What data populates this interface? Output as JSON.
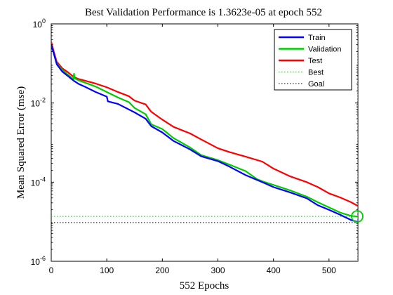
{
  "chart_data": {
    "type": "line",
    "title": "Best Validation Performance is 1.3623e-05 at epoch 552",
    "xlabel": "552 Epochs",
    "ylabel": "Mean Squared Error  (mse)",
    "xlim": [
      0,
      552
    ],
    "ylim": [
      1e-06,
      1
    ],
    "yscale": "log",
    "x_ticks": [
      "0",
      "100",
      "200",
      "300",
      "400",
      "500"
    ],
    "y_ticks": [
      {
        "base": "10",
        "exp": "0"
      },
      {
        "base": "10",
        "exp": "-2"
      },
      {
        "base": "10",
        "exp": "-4"
      },
      {
        "base": "10",
        "exp": "-6"
      }
    ],
    "grid": false,
    "legend_position": "top-right",
    "series": [
      {
        "name": "Train",
        "color": "#0000ff",
        "x": [
          0,
          5,
          10,
          20,
          30,
          40,
          50,
          60,
          80,
          100,
          102,
          120,
          150,
          170,
          180,
          200,
          220,
          250,
          270,
          300,
          320,
          350,
          380,
          400,
          430,
          460,
          480,
          500,
          520,
          540,
          552
        ],
        "y": [
          0.3,
          0.17,
          0.095,
          0.062,
          0.048,
          0.037,
          0.03,
          0.026,
          0.019,
          0.0145,
          0.011,
          0.0095,
          0.0058,
          0.004,
          0.0026,
          0.0018,
          0.0011,
          0.00067,
          0.00045,
          0.00034,
          0.00025,
          0.00015,
          0.0001,
          7.5e-05,
          5.5e-05,
          3.9e-05,
          2.6e-05,
          2e-05,
          1.5e-05,
          1.1e-05,
          9.8e-06
        ]
      },
      {
        "name": "Validation",
        "color": "#00cc00",
        "x": [
          0,
          5,
          10,
          20,
          30,
          40,
          41,
          42,
          50,
          60,
          80,
          100,
          120,
          140,
          150,
          170,
          180,
          200,
          220,
          250,
          270,
          300,
          320,
          350,
          370,
          380,
          400,
          430,
          460,
          480,
          500,
          520,
          540,
          552
        ],
        "y": [
          0.3,
          0.17,
          0.1,
          0.068,
          0.052,
          0.04,
          0.055,
          0.042,
          0.037,
          0.033,
          0.026,
          0.019,
          0.0138,
          0.0105,
          0.0075,
          0.0052,
          0.0029,
          0.0022,
          0.0013,
          0.00075,
          0.00048,
          0.00036,
          0.00028,
          0.00019,
          0.00012,
          0.000105,
          8.5e-05,
          6.2e-05,
          4.3e-05,
          3.1e-05,
          2.3e-05,
          1.7e-05,
          1.4e-05,
          1.36e-05
        ]
      },
      {
        "name": "Test",
        "color": "#ff0000",
        "x": [
          0,
          5,
          10,
          20,
          30,
          40,
          50,
          60,
          80,
          100,
          120,
          140,
          150,
          170,
          180,
          200,
          220,
          250,
          270,
          300,
          320,
          350,
          380,
          400,
          430,
          460,
          480,
          500,
          520,
          540,
          552
        ],
        "y": [
          0.35,
          0.19,
          0.11,
          0.075,
          0.06,
          0.046,
          0.04,
          0.037,
          0.031,
          0.025,
          0.019,
          0.0148,
          0.0115,
          0.0092,
          0.006,
          0.0038,
          0.0025,
          0.0017,
          0.0012,
          0.00072,
          0.00058,
          0.00044,
          0.00033,
          0.00022,
          0.00014,
          0.0001,
          7.5e-05,
          5.2e-05,
          4.1e-05,
          3.1e-05,
          2.5e-05
        ]
      }
    ],
    "best": {
      "name": "Best",
      "epoch": 552,
      "value": 1.3623e-05,
      "color": "#00cc00"
    },
    "goal": {
      "name": "Goal",
      "value": 9.5e-06,
      "color": "#000000"
    }
  }
}
